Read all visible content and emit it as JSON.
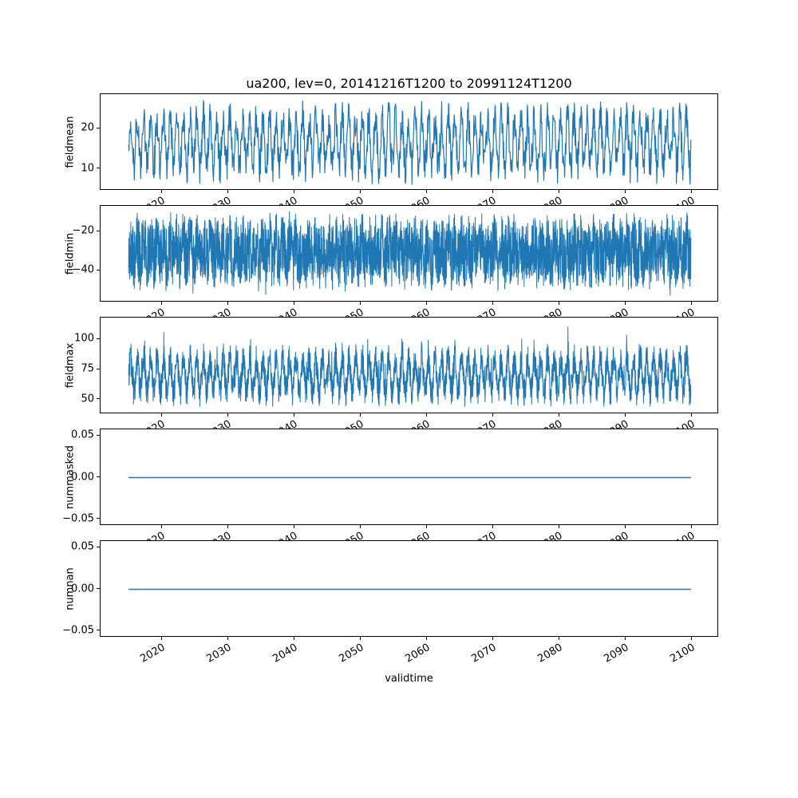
{
  "chart_data": {
    "type": "line",
    "title": "ua200, lev=0, 20141216T1200 to 20991124T1200",
    "xlabel": "validtime",
    "x_start": 2014.96,
    "x_end": 2099.9,
    "x_ticks": [
      2020,
      2030,
      2040,
      2050,
      2060,
      2070,
      2080,
      2090,
      2100
    ],
    "x_tick_labels": [
      "2020",
      "2030",
      "2040",
      "2050",
      "2060",
      "2070",
      "2080",
      "2090",
      "2100"
    ],
    "x_tick_rotation_deg": 30,
    "line_color": "#1f77b4",
    "grid": false,
    "subplots": [
      {
        "ylabel": "fieldmean",
        "ylim": [
          4.6,
          28.5
        ],
        "yticks": [
          {
            "v": 20,
            "label": "20"
          },
          {
            "v": 10,
            "label": "10"
          }
        ],
        "n_points": 1400,
        "line_width": 1.2,
        "series": {
          "kind": "seasonal_noise",
          "mean": 16.5,
          "seasonal_amplitude": 6,
          "noise_amplitude": 4.5,
          "period_years": 1,
          "spike": 0,
          "approx_min": 6,
          "approx_max": 27
        }
      },
      {
        "ylabel": "fieldmin",
        "ylim": [
          -56,
          -7
        ],
        "yticks": [
          {
            "v": -20,
            "label": "−20"
          },
          {
            "v": -40,
            "label": "−40"
          }
        ],
        "n_points": 3200,
        "line_width": 1.0,
        "series": {
          "kind": "seasonal_noise",
          "mean": -30,
          "seasonal_amplitude": 4,
          "noise_amplitude": 16,
          "period_years": 1,
          "spike": -6,
          "approx_min": -56,
          "approx_max": -10
        }
      },
      {
        "ylabel": "fieldmax",
        "ylim": [
          38,
          118
        ],
        "yticks": [
          {
            "v": 100,
            "label": "100"
          },
          {
            "v": 75,
            "label": "75"
          },
          {
            "v": 50,
            "label": "50"
          }
        ],
        "n_points": 2800,
        "line_width": 1.0,
        "series": {
          "kind": "seasonal_noise",
          "mean": 70,
          "seasonal_amplitude": 13,
          "noise_amplitude": 13,
          "period_years": 1,
          "spike": 18,
          "approx_min": 44,
          "approx_max": 114
        }
      },
      {
        "ylabel": "nummasked",
        "ylim": [
          -0.0577,
          0.0577
        ],
        "yticks": [
          {
            "v": 0.05,
            "label": "0.05"
          },
          {
            "v": 0,
            "label": "0.00"
          },
          {
            "v": -0.05,
            "label": "−0.05"
          }
        ],
        "n_points": 2,
        "line_width": 1.5,
        "series": {
          "kind": "constant",
          "value": 0
        }
      },
      {
        "ylabel": "numnan",
        "ylim": [
          -0.0577,
          0.0577
        ],
        "yticks": [
          {
            "v": 0.05,
            "label": "0.05"
          },
          {
            "v": 0,
            "label": "0.00"
          },
          {
            "v": -0.05,
            "label": "−0.05"
          }
        ],
        "n_points": 2,
        "line_width": 1.5,
        "series": {
          "kind": "constant",
          "value": 0
        }
      }
    ]
  }
}
